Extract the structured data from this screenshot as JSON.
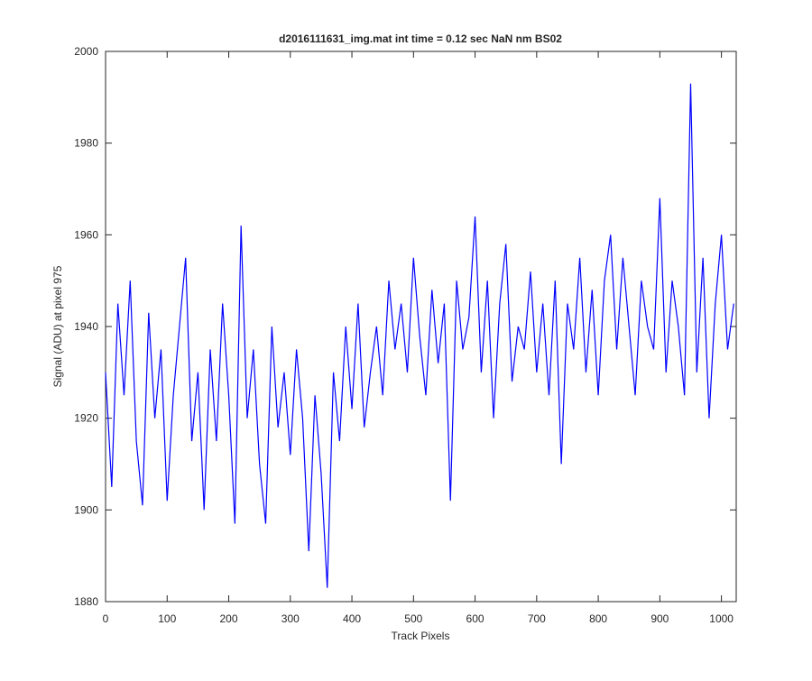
{
  "chart_data": {
    "type": "line",
    "title": "d2016111631_img.mat int time = 0.12 sec  NaN nm BS02",
    "xlabel": "Track Pixels",
    "ylabel": "Signal (ADU) at pixel 975",
    "x": [
      0,
      10,
      20,
      30,
      40,
      50,
      60,
      70,
      80,
      90,
      100,
      110,
      120,
      130,
      140,
      150,
      160,
      170,
      180,
      190,
      200,
      210,
      220,
      230,
      240,
      250,
      260,
      270,
      280,
      290,
      300,
      310,
      320,
      330,
      340,
      350,
      360,
      370,
      380,
      390,
      400,
      410,
      420,
      430,
      440,
      450,
      460,
      470,
      480,
      490,
      500,
      510,
      520,
      530,
      540,
      550,
      560,
      570,
      580,
      590,
      600,
      610,
      620,
      630,
      640,
      650,
      660,
      670,
      680,
      690,
      700,
      710,
      720,
      730,
      740,
      750,
      760,
      770,
      780,
      790,
      800,
      810,
      820,
      830,
      840,
      850,
      860,
      870,
      880,
      890,
      900,
      910,
      920,
      930,
      940,
      950,
      960,
      970,
      980,
      990,
      1000,
      1010,
      1020
    ],
    "series": [
      {
        "color": "#0000ff",
        "values": [
          1930,
          1905,
          1945,
          1925,
          1950,
          1915,
          1901,
          1943,
          1920,
          1935,
          1902,
          1925,
          1940,
          1955,
          1915,
          1930,
          1900,
          1935,
          1915,
          1945,
          1925,
          1897,
          1962,
          1920,
          1935,
          1910,
          1897,
          1940,
          1918,
          1930,
          1912,
          1935,
          1920,
          1891,
          1925,
          1908,
          1883,
          1930,
          1915,
          1940,
          1922,
          1945,
          1918,
          1930,
          1940,
          1925,
          1950,
          1935,
          1945,
          1930,
          1955,
          1938,
          1925,
          1948,
          1932,
          1945,
          1902,
          1950,
          1935,
          1942,
          1964,
          1930,
          1950,
          1920,
          1945,
          1958,
          1928,
          1940,
          1935,
          1952,
          1930,
          1945,
          1925,
          1950,
          1910,
          1945,
          1935,
          1955,
          1930,
          1948,
          1925,
          1950,
          1960,
          1935,
          1955,
          1940,
          1925,
          1950,
          1940,
          1935,
          1968,
          1930,
          1950,
          1940,
          1925,
          1993,
          1930,
          1955,
          1920,
          1945,
          1960,
          1935,
          1945
        ]
      }
    ],
    "xlim": [
      0,
      1024
    ],
    "xticks": [
      0,
      100,
      200,
      300,
      400,
      500,
      600,
      700,
      800,
      900,
      1000
    ],
    "ylim": [
      1880,
      2000
    ],
    "yticks": [
      1880,
      1900,
      1920,
      1940,
      1960,
      1980,
      2000
    ]
  }
}
